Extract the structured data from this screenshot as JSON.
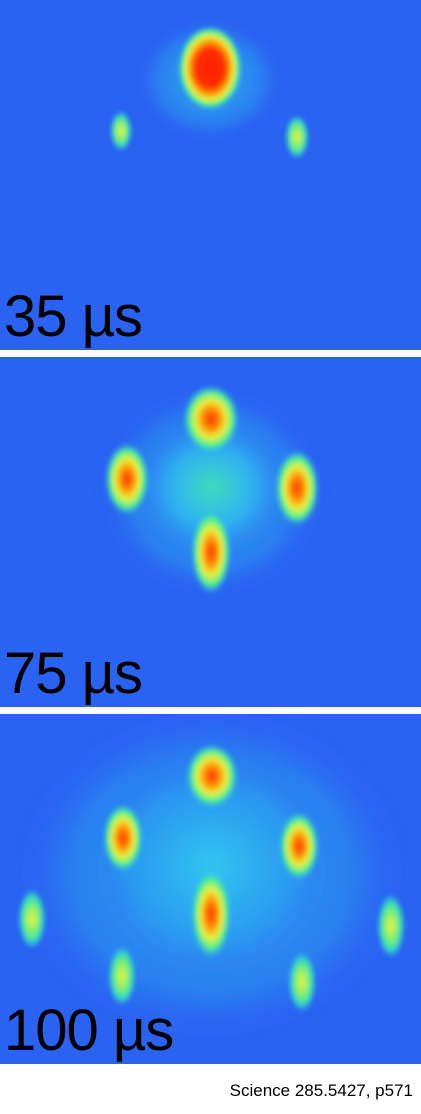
{
  "panels": [
    {
      "label": "35 µs"
    },
    {
      "label": "75 µs"
    },
    {
      "label": "100 µs"
    }
  ],
  "caption": "Science 285.5427, p571",
  "colors": {
    "background": "#2a62f2",
    "halo": "#28c8f0",
    "mid": "#3cf0a0",
    "warm": "#f0f040",
    "hot": "#ff8800",
    "core": "#ff1e00"
  }
}
